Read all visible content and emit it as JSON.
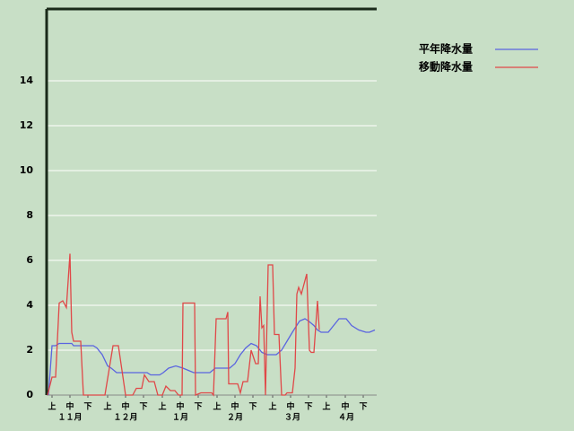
{
  "chart_data": {
    "type": "line",
    "xlim": [
      0,
      184
    ],
    "ylim": [
      0,
      17.2
    ],
    "yticks": [
      0,
      2,
      4,
      6,
      8,
      10,
      12,
      14
    ],
    "grid": true,
    "xticks": [
      {
        "value": 3,
        "label": "上"
      },
      {
        "value": 13,
        "label": "中"
      },
      {
        "value": 23,
        "label": "下"
      },
      {
        "value": 34,
        "label": "上"
      },
      {
        "value": 44,
        "label": "中"
      },
      {
        "value": 54,
        "label": "下"
      },
      {
        "value": 64.5,
        "label": "上"
      },
      {
        "value": 74.5,
        "label": "中"
      },
      {
        "value": 84.5,
        "label": "下"
      },
      {
        "value": 95,
        "label": "上"
      },
      {
        "value": 105,
        "label": "中"
      },
      {
        "value": 115,
        "label": "下"
      },
      {
        "value": 126,
        "label": "上"
      },
      {
        "value": 136,
        "label": "中"
      },
      {
        "value": 146,
        "label": "下"
      },
      {
        "value": 156,
        "label": "上"
      },
      {
        "value": 166.5,
        "label": "中"
      },
      {
        "value": 176.5,
        "label": "下"
      }
    ],
    "month_labels": [
      {
        "value": 13,
        "label": "１１月"
      },
      {
        "value": 44,
        "label": "１２月"
      },
      {
        "value": 74.5,
        "label": "１月"
      },
      {
        "value": 105,
        "label": "２月"
      },
      {
        "value": 137,
        "label": "３月"
      },
      {
        "value": 167,
        "label": "４月"
      }
    ],
    "legend": "top-right",
    "series": [
      {
        "name": "平年降水量",
        "color": "#5a64e0",
        "x": [
          1,
          3,
          5,
          7,
          14,
          15,
          26,
          28,
          31,
          34,
          36,
          39,
          56,
          58,
          63,
          65,
          68,
          72,
          76,
          79,
          82,
          91,
          94,
          102,
          105,
          108,
          111,
          114,
          117,
          120,
          123,
          128,
          131,
          134,
          137,
          141,
          144,
          146,
          149,
          151,
          153,
          157,
          161,
          163,
          167,
          170,
          174,
          178,
          180,
          183
        ],
        "values": [
          0,
          2.2,
          2.2,
          2.3,
          2.3,
          2.2,
          2.2,
          2.1,
          1.8,
          1.3,
          1.2,
          1.0,
          1.0,
          0.9,
          0.9,
          1.0,
          1.2,
          1.3,
          1.2,
          1.1,
          1.0,
          1.0,
          1.2,
          1.2,
          1.4,
          1.8,
          2.1,
          2.3,
          2.2,
          1.9,
          1.8,
          1.8,
          2.0,
          2.4,
          2.8,
          3.3,
          3.4,
          3.3,
          3.1,
          2.9,
          2.8,
          2.8,
          3.2,
          3.4,
          3.4,
          3.1,
          2.9,
          2.8,
          2.8,
          2.9
        ]
      },
      {
        "name": "移動降水量",
        "color": "#e04848",
        "x": [
          0.5,
          3,
          5,
          7,
          9,
          11,
          13,
          14,
          15,
          19,
          20.5,
          32.5,
          37,
          40,
          44,
          48,
          50,
          53,
          54.5,
          57,
          60,
          62,
          64.5,
          66.5,
          69,
          71.5,
          73.5,
          75.5,
          76,
          82.5,
          83,
          86,
          92,
          93,
          94.5,
          100,
          101,
          101.5,
          106.5,
          108,
          109.5,
          112,
          114,
          116.5,
          118,
          119,
          120,
          121,
          122,
          123.5,
          126,
          127,
          129.5,
          131,
          133,
          134,
          137,
          138.5,
          139.5,
          140.5,
          142,
          145,
          146.5,
          147.5,
          149,
          151,
          152
        ],
        "values": [
          0,
          0.8,
          0.8,
          4.1,
          4.2,
          3.9,
          6.3,
          2.8,
          2.4,
          2.4,
          0,
          0,
          2.2,
          2.2,
          0,
          0,
          0.3,
          0.3,
          0.9,
          0.6,
          0.6,
          0,
          0,
          0.4,
          0.2,
          0.2,
          0,
          0,
          4.1,
          4.1,
          0,
          0.1,
          0.1,
          0,
          3.4,
          3.4,
          3.7,
          0.5,
          0.5,
          0.1,
          0.6,
          0.6,
          2.0,
          1.4,
          1.4,
          4.4,
          3.0,
          3.1,
          0,
          5.8,
          5.8,
          2.7,
          2.7,
          0,
          0,
          0.1,
          0.1,
          1.2,
          4.5,
          4.8,
          4.5,
          5.4,
          2.0,
          1.9,
          1.9,
          4.2,
          2.9
        ]
      }
    ]
  }
}
